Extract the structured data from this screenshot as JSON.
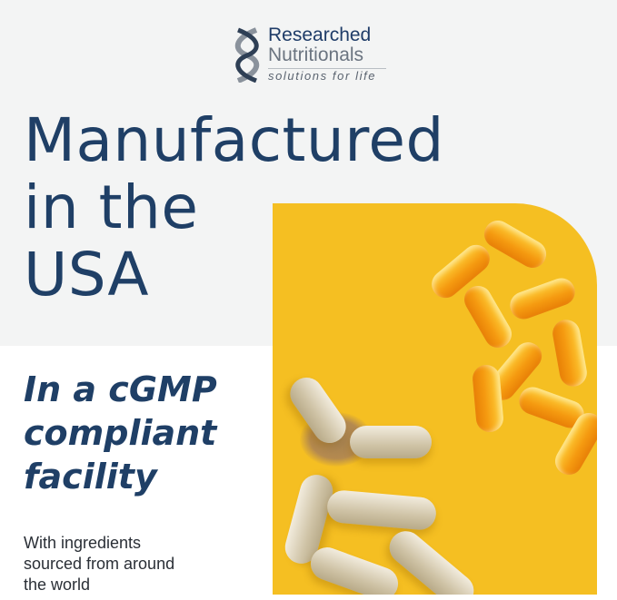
{
  "logo": {
    "line1": "Researched",
    "line2": "Nutritionals",
    "tagline": "solutions for life"
  },
  "headline": [
    "Manufactured",
    "in the",
    "USA"
  ],
  "subheadline": [
    "In a cGMP",
    "compliant",
    "facility"
  ],
  "body_text": [
    "With ingredients",
    "sourced from around",
    "the world"
  ],
  "colors": {
    "navy": "#1f3f66",
    "yellow_bg": "#f5bf22",
    "top_bg": "#f3f4f4"
  }
}
